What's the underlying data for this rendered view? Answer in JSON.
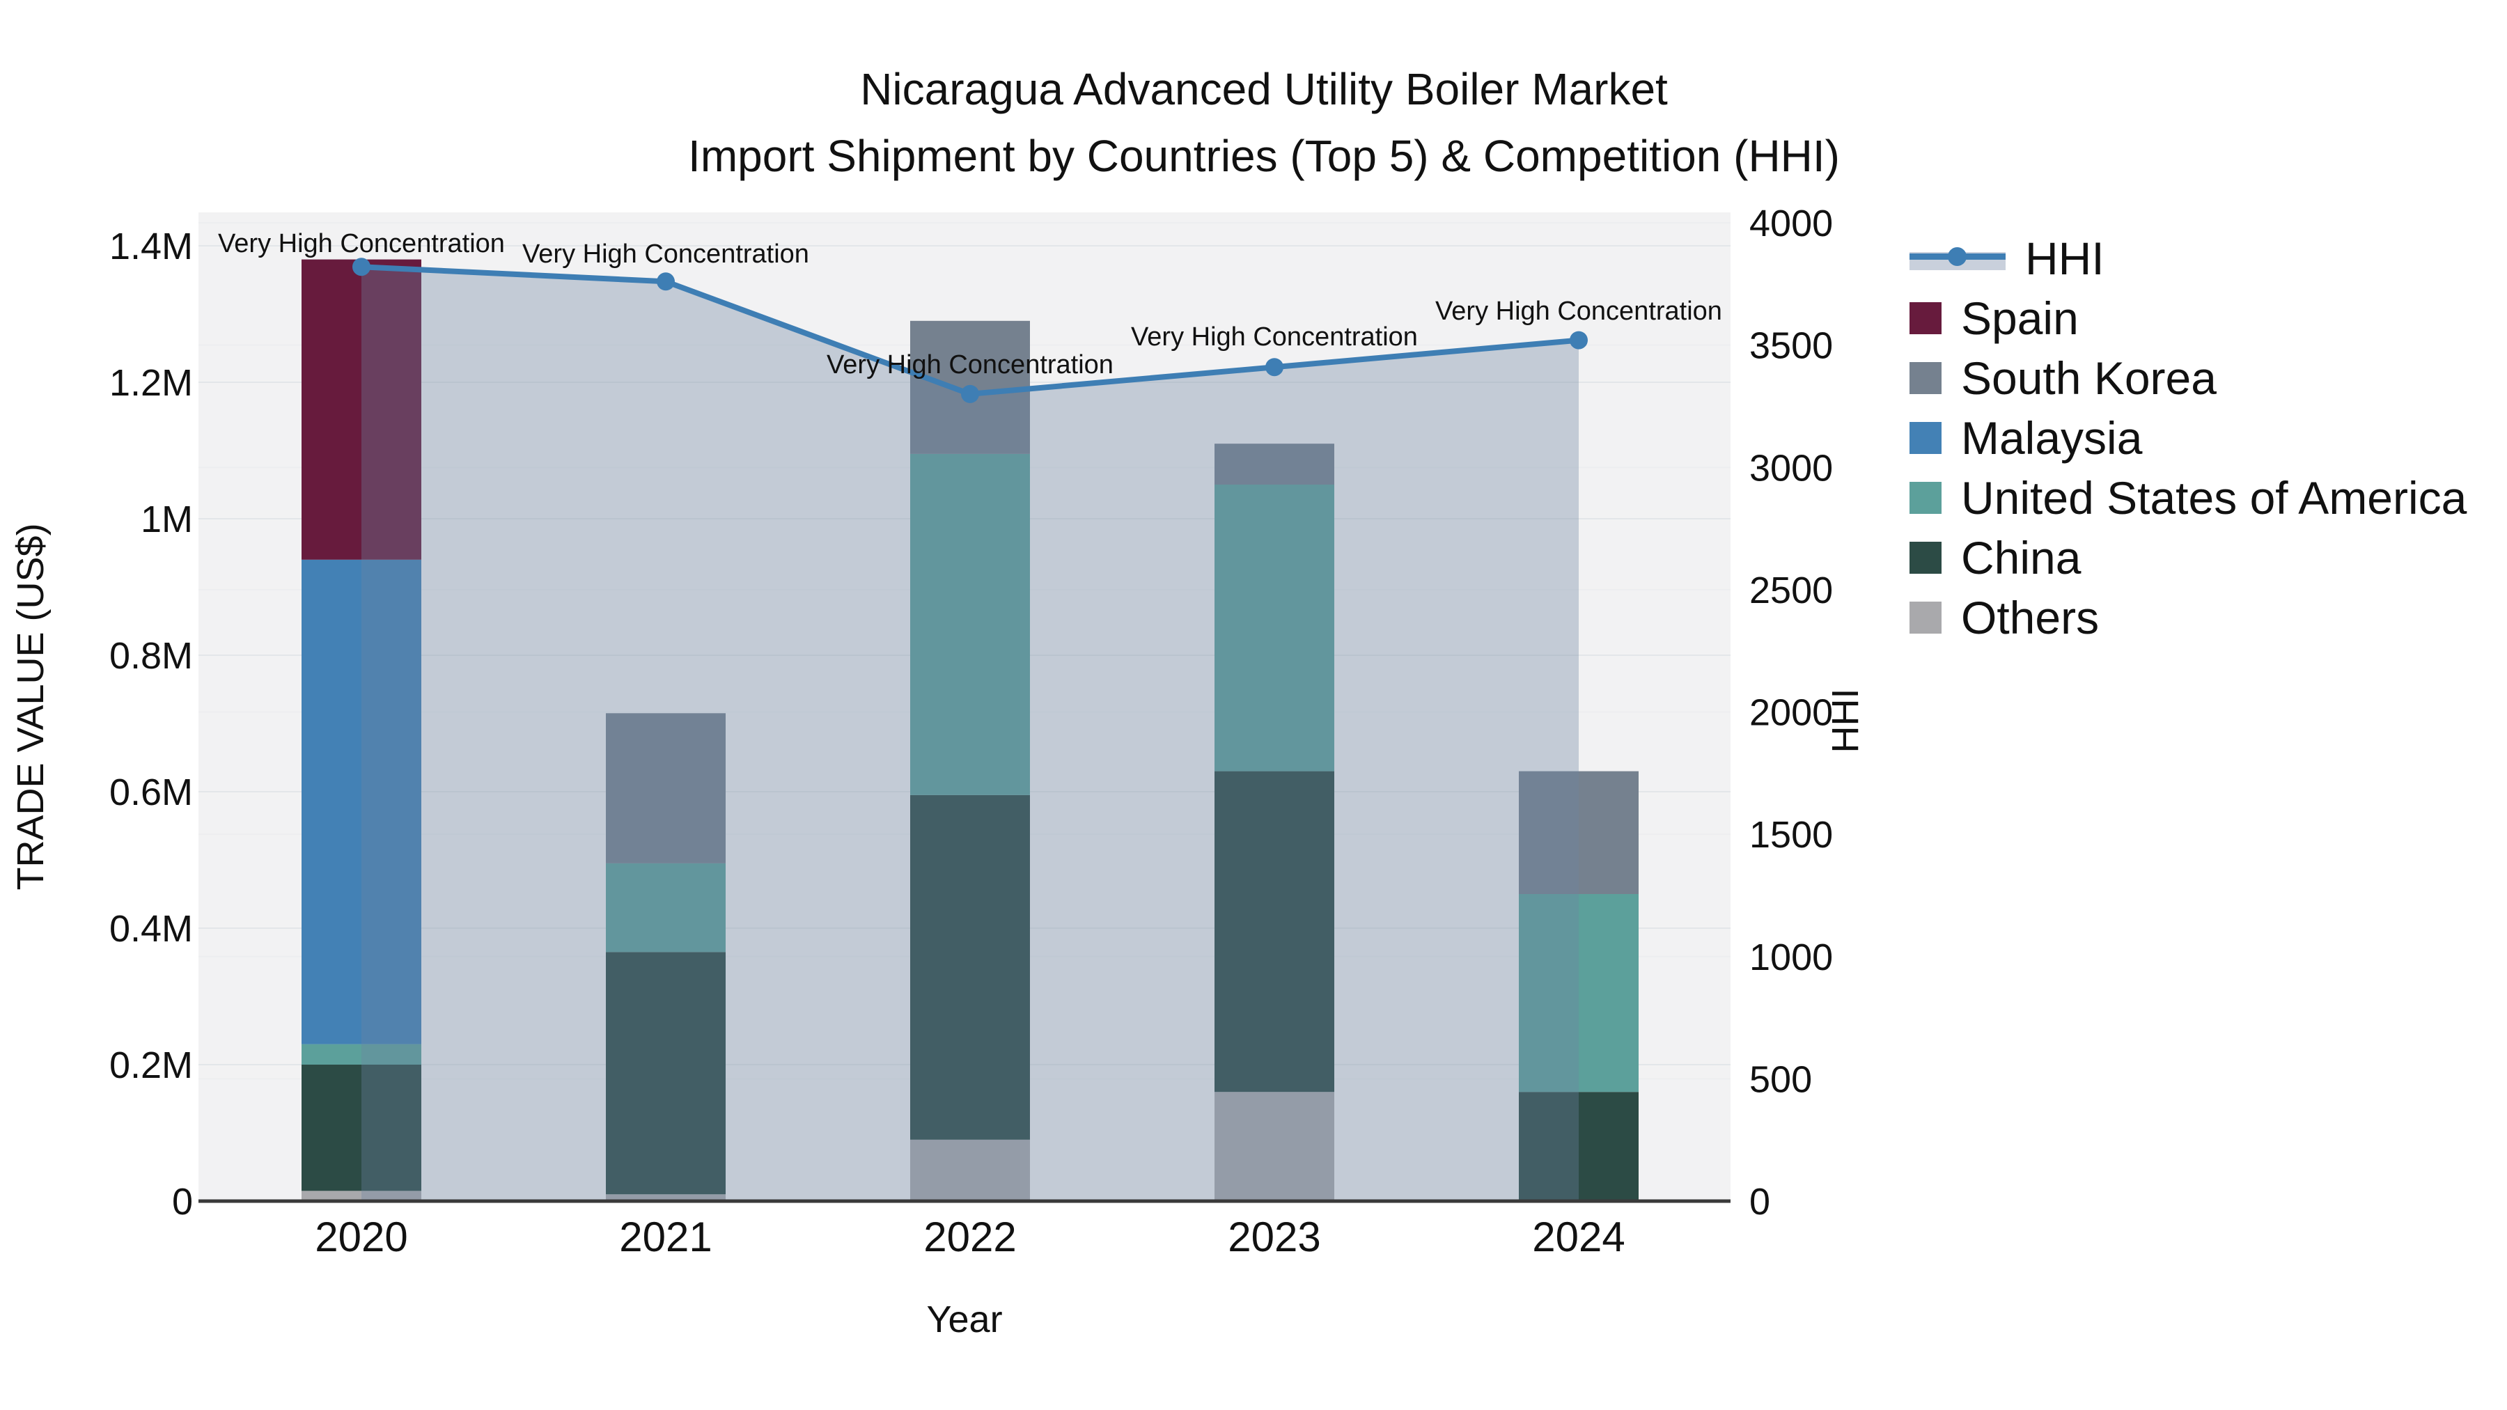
{
  "title": {
    "line1": "Nicaragua Advanced Utility Boiler Market",
    "line2": "Import Shipment by Countries (Top 5) & Competition (HHI)"
  },
  "axes": {
    "y_left": {
      "label": "TRADE VALUE (US$)",
      "ticks": [
        "0",
        "0.2M",
        "0.4M",
        "0.6M",
        "0.8M",
        "1M",
        "1.2M",
        "1.4M"
      ]
    },
    "y_right": {
      "label": "HHI",
      "ticks": [
        "0",
        "500",
        "1000",
        "1500",
        "2000",
        "2500",
        "3000",
        "3500",
        "4000"
      ]
    },
    "x": {
      "label": "Year",
      "ticks": [
        "2020",
        "2021",
        "2022",
        "2023",
        "2024"
      ]
    }
  },
  "legend": {
    "items": [
      {
        "label": "HHI",
        "type": "line",
        "color": "#3E7EB4"
      },
      {
        "label": "Spain",
        "type": "swatch",
        "color": "#671B3D"
      },
      {
        "label": "South Korea",
        "type": "swatch",
        "color": "#75818F"
      },
      {
        "label": "Malaysia",
        "type": "swatch",
        "color": "#4381B5"
      },
      {
        "label": "United States of America",
        "type": "swatch",
        "color": "#5CA09B"
      },
      {
        "label": "China",
        "type": "swatch",
        "color": "#2C4B45"
      },
      {
        "label": "Others",
        "type": "swatch",
        "color": "#A9A9AC"
      }
    ]
  },
  "colors": {
    "hhi_line": "#3E7EB4",
    "hhi_area_fill": "rgba(110,132,160,0.35)",
    "plot_background": "#F2F2F3",
    "grid_major": "#E3E6E9",
    "grid_minor": "#EDEEF0",
    "axis_line": "#3A3A3A",
    "text": "#111111"
  },
  "chart_data": {
    "type": "combo: stacked-bar + line",
    "title": "Nicaragua Advanced Utility Boiler Market — Import Shipment by Countries (Top 5) & Competition (HHI)",
    "categories": [
      "2020",
      "2021",
      "2022",
      "2023",
      "2024"
    ],
    "xlabel": "Year",
    "ylabel_left": "TRADE VALUE (US$)",
    "ylabel_right": "HHI",
    "y_left_range": [
      0,
      1400000
    ],
    "y_right_range": [
      0,
      4000
    ],
    "grid": true,
    "legend_position": "right",
    "value_unit": "US$",
    "stack_order_bottom_to_top": [
      "Others",
      "China",
      "United States of America",
      "Malaysia",
      "South Korea",
      "Spain"
    ],
    "series": [
      {
        "name": "Spain",
        "color": "#671B3D",
        "values": [
          440000,
          0,
          0,
          0,
          0
        ]
      },
      {
        "name": "South Korea",
        "color": "#75818F",
        "values": [
          0,
          220000,
          195000,
          60000,
          180000
        ]
      },
      {
        "name": "Malaysia",
        "color": "#4381B5",
        "values": [
          710000,
          0,
          0,
          0,
          0
        ]
      },
      {
        "name": "United States of America",
        "color": "#5CA09B",
        "values": [
          30000,
          130000,
          500000,
          420000,
          290000
        ]
      },
      {
        "name": "China",
        "color": "#2C4B45",
        "values": [
          185000,
          355000,
          505000,
          470000,
          160000
        ]
      },
      {
        "name": "Others",
        "color": "#A9A9AC",
        "values": [
          15000,
          10000,
          90000,
          160000,
          0
        ]
      }
    ],
    "totals": [
      1380000,
      715000,
      1290000,
      1110000,
      630000
    ],
    "line_series": {
      "name": "HHI",
      "color": "#3E7EB4",
      "axis": "right",
      "values": [
        3820,
        3760,
        3300,
        3410,
        3520
      ],
      "area_fill_under_line": true,
      "annotations": [
        "Very High Concentration",
        "Very High Concentration",
        "Very High Concentration",
        "Very High Concentration",
        "Very High Concentration"
      ]
    }
  }
}
